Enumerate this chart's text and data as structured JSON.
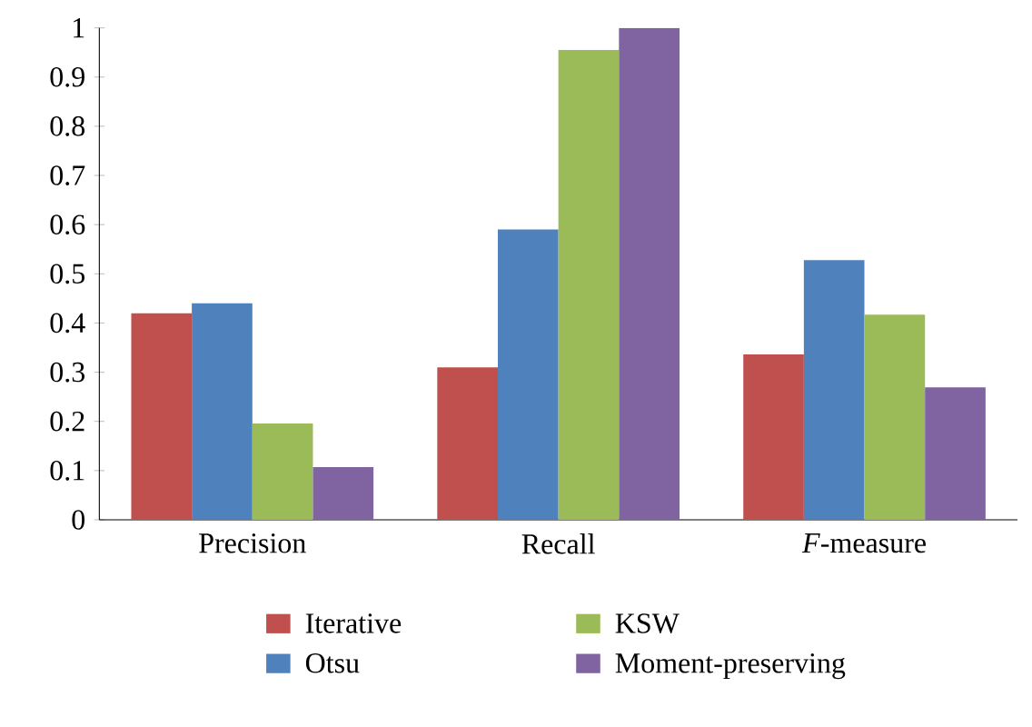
{
  "chart_data": {
    "type": "bar",
    "categories": [
      "Precision",
      "Recall",
      "*F*-measure"
    ],
    "series": [
      {
        "name": "Iterative",
        "color": "#c0504d",
        "values": [
          0.42,
          0.31,
          0.336
        ]
      },
      {
        "name": "Otsu",
        "color": "#4f81bd",
        "values": [
          0.44,
          0.59,
          0.528
        ]
      },
      {
        "name": "KSW",
        "color": "#9bbb59",
        "values": [
          0.196,
          0.955,
          0.417
        ]
      },
      {
        "name": "Moment-preserving",
        "color": "#8064a2",
        "values": [
          0.107,
          1.0,
          0.269
        ]
      }
    ],
    "ylim": [
      0,
      1
    ],
    "yticks": [
      0,
      0.1,
      0.2,
      0.3,
      0.4,
      0.5,
      0.6,
      0.7,
      0.8,
      0.9,
      1
    ],
    "legend": "bottom"
  }
}
